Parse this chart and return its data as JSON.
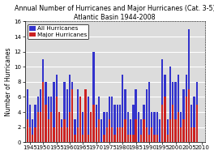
{
  "title": "Annual Number of Hurricanes and Major Hurricanes (Cat. 3-5)",
  "subtitle": "Atlantic Basin 1944-2008",
  "ylabel": "Number of Hurricanes",
  "years": [
    1944,
    1945,
    1946,
    1947,
    1948,
    1949,
    1950,
    1951,
    1952,
    1953,
    1954,
    1955,
    1956,
    1957,
    1958,
    1959,
    1960,
    1961,
    1962,
    1963,
    1964,
    1965,
    1966,
    1967,
    1968,
    1969,
    1970,
    1971,
    1972,
    1973,
    1974,
    1975,
    1976,
    1977,
    1978,
    1979,
    1980,
    1981,
    1982,
    1983,
    1984,
    1985,
    1986,
    1987,
    1988,
    1989,
    1990,
    1991,
    1992,
    1993,
    1994,
    1995,
    1996,
    1997,
    1998,
    1999,
    2000,
    2001,
    2002,
    2003,
    2004,
    2005,
    2006,
    2007,
    2008
  ],
  "all_hurricanes": [
    7,
    5,
    3,
    5,
    6,
    7,
    11,
    8,
    6,
    6,
    8,
    9,
    4,
    3,
    8,
    7,
    9,
    8,
    3,
    7,
    6,
    4,
    7,
    6,
    4,
    12,
    5,
    6,
    3,
    4,
    4,
    6,
    6,
    5,
    5,
    5,
    9,
    7,
    4,
    3,
    5,
    7,
    4,
    3,
    5,
    7,
    8,
    4,
    4,
    4,
    3,
    11,
    9,
    3,
    10,
    8,
    8,
    9,
    4,
    7,
    9,
    15,
    5,
    6,
    8
  ],
  "major_hurricanes": [
    3,
    2,
    1,
    2,
    4,
    4,
    8,
    5,
    3,
    4,
    2,
    6,
    4,
    2,
    3,
    2,
    4,
    7,
    1,
    2,
    6,
    1,
    7,
    1,
    4,
    5,
    2,
    3,
    0,
    1,
    2,
    3,
    2,
    1,
    2,
    2,
    2,
    3,
    1,
    1,
    1,
    3,
    0,
    1,
    3,
    2,
    1,
    2,
    1,
    1,
    0,
    5,
    6,
    1,
    3,
    5,
    3,
    4,
    2,
    3,
    6,
    7,
    2,
    2,
    5
  ],
  "bar_color_all": "#3333cc",
  "bar_color_major": "#cc2222",
  "ylim": [
    0,
    16
  ],
  "yticks": [
    0,
    2,
    4,
    6,
    8,
    10,
    12,
    14,
    16
  ],
  "xticks": [
    1945,
    1950,
    1955,
    1960,
    1965,
    1970,
    1975,
    1980,
    1985,
    1990,
    1995,
    2000,
    2005,
    2010
  ],
  "bg_color": "#ffffff",
  "plot_bg_color": "#dcdcdc",
  "grid_color": "#ffffff",
  "title_fontsize": 5.8,
  "legend_fontsize": 5.2,
  "tick_fontsize": 5.0,
  "ylabel_fontsize": 5.5,
  "bar_width": 0.7
}
